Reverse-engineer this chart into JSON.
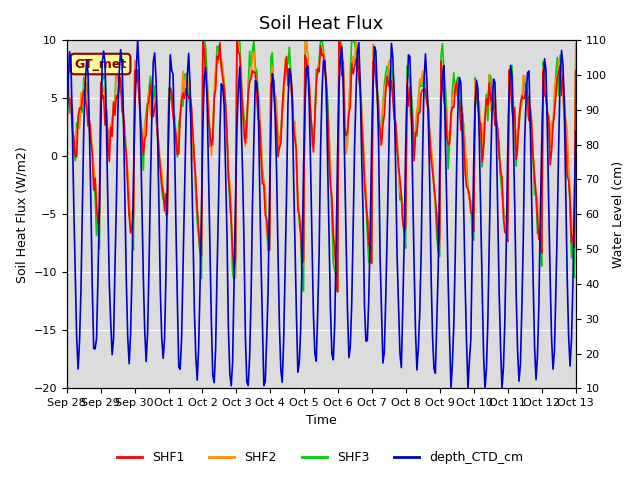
{
  "title": "Soil Heat Flux",
  "xlabel": "Time",
  "ylabel_left": "Soil Heat Flux (W/m2)",
  "ylabel_right": "Water Level (cm)",
  "ylim_left": [
    -20,
    10
  ],
  "ylim_right": [
    10,
    110
  ],
  "x_tick_labels": [
    "Sep 28",
    "Sep 29",
    "Sep 30",
    "Oct 1",
    "Oct 2",
    "Oct 3",
    "Oct 4",
    "Oct 5",
    "Oct 6",
    "Oct 7",
    "Oct 8",
    "Oct 9",
    "Oct 10",
    "Oct 11",
    "Oct 12",
    "Oct 13"
  ],
  "colors": {
    "SHF1": "#ff0000",
    "SHF2": "#ff8c00",
    "SHF3": "#00cc00",
    "depth_CTD_cm": "#0000cd"
  },
  "annotation_text": "GT_met",
  "annotation_color": "#8b0000",
  "annotation_bg": "#ffff99",
  "background_color": "#dcdcdc",
  "fig_background": "#ffffff",
  "title_fontsize": 13,
  "axis_label_fontsize": 9,
  "tick_fontsize": 8,
  "linewidth_shf": 1.2,
  "linewidth_depth": 1.2,
  "grid_color": "#ffffff",
  "grid_linewidth": 0.8,
  "yticks_left": [
    -20,
    -15,
    -10,
    -5,
    0,
    5,
    10
  ],
  "yticks_right": [
    10,
    20,
    30,
    40,
    50,
    60,
    70,
    80,
    90,
    100,
    110
  ]
}
